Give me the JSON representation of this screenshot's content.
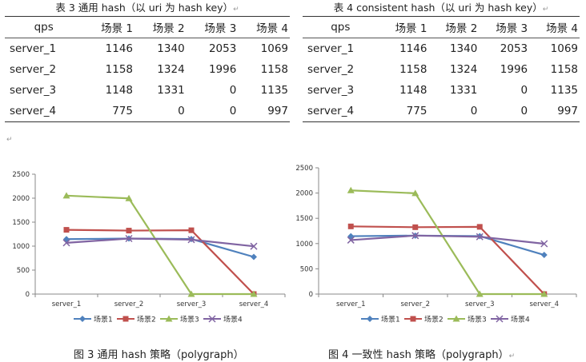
{
  "table3": {
    "caption": "表 3 通用 hash（以 uri 为 hash key）",
    "columns": [
      "qps",
      "场景 1",
      "场景 2",
      "场景 3",
      "场景 4"
    ],
    "rows": [
      [
        "server_1",
        "1146",
        "1340",
        "2053",
        "1069"
      ],
      [
        "server_2",
        "1158",
        "1324",
        "1996",
        "1158"
      ],
      [
        "server_3",
        "1148",
        "1331",
        "0",
        "1135"
      ],
      [
        "server_4",
        "775",
        "0",
        "0",
        "997"
      ]
    ]
  },
  "table4": {
    "caption": "表 4 consistent hash（以 uri 为 hash key）",
    "columns": [
      "qps",
      "场景 1",
      "场景 2",
      "场景 3",
      "场景 4"
    ],
    "rows": [
      [
        "server_1",
        "1146",
        "1340",
        "2053",
        "1069"
      ],
      [
        "server_2",
        "1158",
        "1324",
        "1996",
        "1158"
      ],
      [
        "server_3",
        "1148",
        "1331",
        "0",
        "1135"
      ],
      [
        "server_4",
        "775",
        "0",
        "0",
        "997"
      ]
    ]
  },
  "paragraph_mark": "↵",
  "chart_data": [
    {
      "type": "line",
      "title": "图 3 通用 hash 策略（polygraph）",
      "categories": [
        "server_1",
        "server_2",
        "server_3",
        "server_4"
      ],
      "ylim": [
        0,
        2500
      ],
      "yticks": [
        0,
        500,
        1000,
        1500,
        2000,
        2500
      ],
      "grid": false,
      "legend": "bottom",
      "series": [
        {
          "name": "场景1",
          "values": [
            1146,
            1158,
            1148,
            775
          ],
          "color": "#4F81BD",
          "marker": "diamond"
        },
        {
          "name": "场景2",
          "values": [
            1340,
            1324,
            1331,
            0
          ],
          "color": "#C0504D",
          "marker": "square"
        },
        {
          "name": "场景3",
          "values": [
            2053,
            1996,
            0,
            0
          ],
          "color": "#9BBB59",
          "marker": "triangle"
        },
        {
          "name": "场景4",
          "values": [
            1069,
            1158,
            1135,
            997
          ],
          "color": "#8064A2",
          "marker": "x"
        }
      ]
    },
    {
      "type": "line",
      "title": "图 4 一致性 hash 策略（polygraph）",
      "categories": [
        "server_1",
        "server_2",
        "server_3",
        "server_4"
      ],
      "ylim": [
        0,
        2500
      ],
      "yticks": [
        0,
        500,
        1000,
        1500,
        2000,
        2500
      ],
      "grid": false,
      "legend": "bottom",
      "series": [
        {
          "name": "场景1",
          "values": [
            1146,
            1158,
            1148,
            775
          ],
          "color": "#4F81BD",
          "marker": "diamond"
        },
        {
          "name": "场景2",
          "values": [
            1340,
            1324,
            1331,
            0
          ],
          "color": "#C0504D",
          "marker": "square"
        },
        {
          "name": "场景3",
          "values": [
            2053,
            1996,
            0,
            0
          ],
          "color": "#9BBB59",
          "marker": "triangle"
        },
        {
          "name": "场景4",
          "values": [
            1069,
            1158,
            1135,
            997
          ],
          "color": "#8064A2",
          "marker": "x"
        }
      ]
    }
  ]
}
